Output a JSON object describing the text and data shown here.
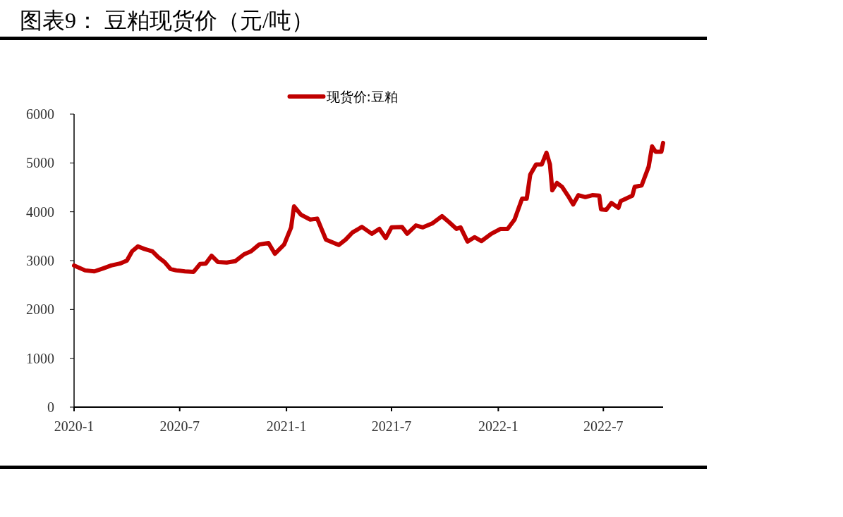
{
  "chart_data": {
    "type": "line",
    "title": "图表9：  豆粕现货价（元/吨）",
    "legend": "top",
    "grid": false,
    "line_style": "solid",
    "xlim": [
      "2020-01-01",
      "2022-10-12"
    ],
    "xticks": [
      {
        "value": "2020-01",
        "label": "2020-1"
      },
      {
        "value": "2020-07",
        "label": "2020-7"
      },
      {
        "value": "2021-01",
        "label": "2021-1"
      },
      {
        "value": "2021-07",
        "label": "2021-7"
      },
      {
        "value": "2022-01",
        "label": "2022-1"
      },
      {
        "value": "2022-07",
        "label": "2022-7"
      }
    ],
    "ylim": [
      0,
      6000
    ],
    "yticks": [
      0,
      1000,
      2000,
      3000,
      4000,
      5000,
      6000
    ],
    "x": [
      "2020-01-01",
      "2020-01-20",
      "2020-02-05",
      "2020-02-20",
      "2020-03-05",
      "2020-03-20",
      "2020-04-01",
      "2020-04-10",
      "2020-04-20",
      "2020-05-01",
      "2020-05-15",
      "2020-05-25",
      "2020-06-05",
      "2020-06-15",
      "2020-06-25",
      "2020-07-10",
      "2020-07-25",
      "2020-08-05",
      "2020-08-15",
      "2020-08-25",
      "2020-09-05",
      "2020-09-20",
      "2020-10-05",
      "2020-10-20",
      "2020-11-01",
      "2020-11-15",
      "2020-12-01",
      "2020-12-12",
      "2020-12-28",
      "2021-01-09",
      "2021-01-14",
      "2021-01-26",
      "2021-02-11",
      "2021-02-23",
      "2021-03-10",
      "2021-04-01",
      "2021-04-13",
      "2021-04-25",
      "2021-05-11",
      "2021-05-28",
      "2021-06-10",
      "2021-06-21",
      "2021-07-01",
      "2021-07-19",
      "2021-07-28",
      "2021-08-12",
      "2021-08-24",
      "2021-09-09",
      "2021-09-26",
      "2021-10-08",
      "2021-10-21",
      "2021-10-28",
      "2021-11-09",
      "2021-11-21",
      "2021-12-03",
      "2021-12-20",
      "2022-01-05",
      "2022-01-17",
      "2022-01-29",
      "2022-02-11",
      "2022-02-19",
      "2022-02-25",
      "2022-03-07",
      "2022-03-17",
      "2022-03-25",
      "2022-03-31",
      "2022-04-04",
      "2022-04-12",
      "2022-04-21",
      "2022-05-01",
      "2022-05-10",
      "2022-05-19",
      "2022-05-31",
      "2022-06-12",
      "2022-06-24",
      "2022-06-27",
      "2022-07-06",
      "2022-07-15",
      "2022-07-27",
      "2022-07-31",
      "2022-08-20",
      "2022-08-24",
      "2022-09-05",
      "2022-09-17",
      "2022-09-23",
      "2022-09-29",
      "2022-10-09",
      "2022-10-12"
    ],
    "series": [
      {
        "name": "现货价:豆粕",
        "color": "#c00000",
        "values": [
          2900,
          2800,
          2780,
          2840,
          2900,
          2940,
          3000,
          3190,
          3290,
          3240,
          3190,
          3070,
          2970,
          2830,
          2800,
          2780,
          2770,
          2930,
          2940,
          3100,
          2970,
          2960,
          2990,
          3130,
          3190,
          3330,
          3360,
          3140,
          3330,
          3680,
          4110,
          3940,
          3840,
          3860,
          3430,
          3320,
          3430,
          3580,
          3690,
          3550,
          3650,
          3460,
          3680,
          3690,
          3550,
          3720,
          3680,
          3760,
          3910,
          3790,
          3650,
          3680,
          3390,
          3480,
          3400,
          3550,
          3650,
          3650,
          3840,
          4270,
          4270,
          4760,
          4970,
          4970,
          5210,
          4970,
          4440,
          4590,
          4510,
          4330,
          4150,
          4340,
          4300,
          4340,
          4330,
          4050,
          4040,
          4180,
          4080,
          4220,
          4330,
          4510,
          4540,
          4920,
          5340,
          5230,
          5230,
          5410
        ]
      }
    ]
  }
}
